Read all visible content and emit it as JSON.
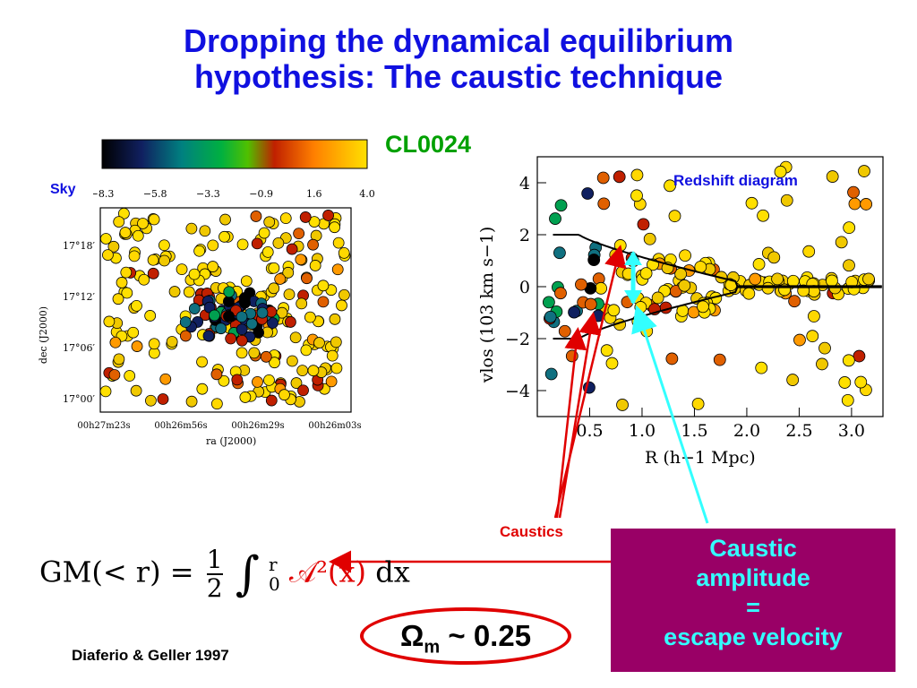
{
  "title": {
    "line1": "Dropping the dynamical equilibrium",
    "line2": "hypothesis: The caustic technique"
  },
  "cluster_name": "CL0024",
  "sky_label": "Sky",
  "colorbar": {
    "ticks": [
      "−8.3",
      "−5.8",
      "−3.3",
      "−0.9",
      "1.6",
      "4.0"
    ],
    "colors": [
      "#000000",
      "#102060",
      "#008080",
      "#00b040",
      "#50c000",
      "#c02000",
      "#ff8000",
      "#ffe000"
    ]
  },
  "sky_plot": {
    "ylabel": "dec (J2000)",
    "xlabel": "ra (J2000)",
    "yticks": [
      "17°18′",
      "17°12′",
      "17°06′",
      "17°00′"
    ],
    "xticks": [
      "00h27m23s",
      "00h26m56s",
      "00h26m29s",
      "00h26m03s"
    ]
  },
  "redshift_plot": {
    "title": "Redshift diagram",
    "ylabel": "vlos (103 km s−1)",
    "xlabel": "R (h−1 Mpc)",
    "yticks": [
      "4",
      "2",
      "0",
      "−2",
      "−4"
    ],
    "xticks": [
      "0.5",
      "1.0",
      "1.5",
      "2.0",
      "2.5",
      "3.0"
    ]
  },
  "caustics_label": "Caustics",
  "amplitude_box": {
    "line1": "Caustic",
    "line2": "amplitude",
    "line3": "=",
    "line4": "escape velocity"
  },
  "omega": {
    "symbol": "Ω",
    "sub": "m",
    "value": "~ 0.25"
  },
  "citation": "Diaferio & Geller 1997",
  "formula": {
    "lhs": "GM(< r) =",
    "num": "1",
    "den": "2",
    "upper": "r",
    "lower": "0",
    "integrand": "𝒜²(x)",
    "dx": "dx"
  }
}
